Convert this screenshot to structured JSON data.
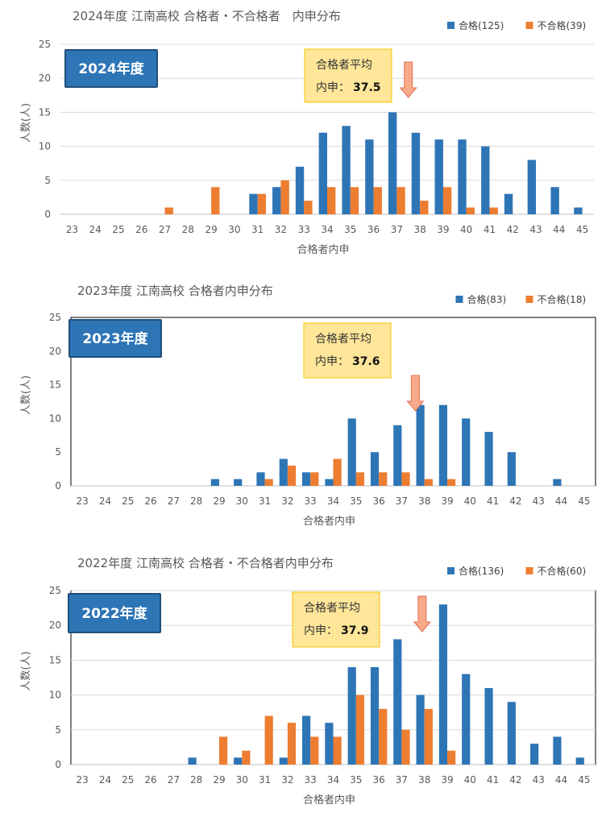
{
  "colors": {
    "pass": "#2e75b6",
    "fail": "#ed7d31",
    "badge": "#2e75b6",
    "note_fill": "#ffe699",
    "note_border": "#f4c400",
    "arrow": "#f8a98a"
  },
  "chart_data": [
    {
      "type": "bar",
      "title": "2024年度 江南高校 合格者・不合格者　内申分布",
      "badge": "2024年度",
      "xlabel": "合格者内申",
      "ylabel": "人数(人)",
      "ylim": [
        0,
        25
      ],
      "yticks": [
        "0",
        "5",
        "10",
        "15",
        "20",
        "25"
      ],
      "grid": true,
      "legend_position": "top-right",
      "categories": [
        "23",
        "24",
        "25",
        "26",
        "27",
        "28",
        "29",
        "30",
        "31",
        "32",
        "33",
        "34",
        "35",
        "36",
        "37",
        "38",
        "39",
        "40",
        "41",
        "42",
        "43",
        "44",
        "45"
      ],
      "series": [
        {
          "name": "合格(125)",
          "values": [
            0,
            0,
            0,
            0,
            0,
            0,
            0,
            0,
            3,
            4,
            7,
            12,
            13,
            11,
            15,
            12,
            11,
            11,
            10,
            3,
            8,
            4,
            1
          ]
        },
        {
          "name": "不合格(39)",
          "values": [
            0,
            0,
            0,
            0,
            1,
            0,
            4,
            0,
            3,
            5,
            2,
            4,
            4,
            4,
            4,
            2,
            4,
            1,
            1,
            0,
            0,
            0,
            0
          ]
        }
      ],
      "annotation": {
        "label": "合格者平均",
        "value_label": "内申：",
        "value": "37.5",
        "x": 37.5
      }
    },
    {
      "type": "bar",
      "title": "2023年度 江南高校 合格者内申分布",
      "badge": "2023年度",
      "xlabel": "合格者内申",
      "ylabel": "人数(人)",
      "ylim": [
        0,
        25
      ],
      "yticks": [
        "0",
        "5",
        "10",
        "15",
        "20",
        "25"
      ],
      "grid": false,
      "legend_position": "top-right",
      "categories": [
        "23",
        "24",
        "25",
        "26",
        "27",
        "28",
        "29",
        "30",
        "31",
        "32",
        "33",
        "34",
        "35",
        "36",
        "37",
        "38",
        "39",
        "40",
        "41",
        "42",
        "43",
        "44",
        "45"
      ],
      "series": [
        {
          "name": "合格(83)",
          "values": [
            0,
            0,
            0,
            0,
            0,
            0,
            1,
            1,
            2,
            4,
            2,
            1,
            10,
            5,
            9,
            12,
            12,
            10,
            8,
            5,
            0,
            1,
            0
          ]
        },
        {
          "name": "不合格(18)",
          "values": [
            0,
            0,
            0,
            0,
            0,
            0,
            0,
            0,
            1,
            3,
            2,
            4,
            2,
            2,
            2,
            1,
            1,
            0,
            0,
            0,
            0,
            0,
            0
          ]
        }
      ],
      "annotation": {
        "label": "合格者平均",
        "value_label": "内申：",
        "value": "37.6",
        "x": 37.6
      }
    },
    {
      "type": "bar",
      "title": "2022年度 江南高校 合格者・不合格者内申分布",
      "badge": "2022年度",
      "xlabel": "合格者内申",
      "ylabel": "人数(人)",
      "ylim": [
        0,
        25
      ],
      "yticks": [
        "0",
        "5",
        "10",
        "15",
        "20",
        "25"
      ],
      "grid": true,
      "legend_position": "top-right",
      "categories": [
        "23",
        "24",
        "25",
        "26",
        "27",
        "28",
        "29",
        "30",
        "31",
        "32",
        "33",
        "34",
        "35",
        "36",
        "37",
        "38",
        "39",
        "40",
        "41",
        "42",
        "43",
        "44",
        "45"
      ],
      "series": [
        {
          "name": "合格(136)",
          "values": [
            0,
            0,
            0,
            0,
            0,
            1,
            0,
            1,
            0,
            1,
            7,
            6,
            14,
            14,
            18,
            10,
            23,
            13,
            11,
            9,
            3,
            4,
            1
          ]
        },
        {
          "name": "不合格(60)",
          "values": [
            0,
            0,
            0,
            0,
            0,
            0,
            4,
            2,
            7,
            6,
            4,
            4,
            10,
            8,
            5,
            8,
            2,
            0,
            0,
            0,
            0,
            0,
            0
          ]
        }
      ],
      "annotation": {
        "label": "合格者平均",
        "value_label": "内申：",
        "value": "37.9",
        "x": 37.9
      }
    }
  ]
}
